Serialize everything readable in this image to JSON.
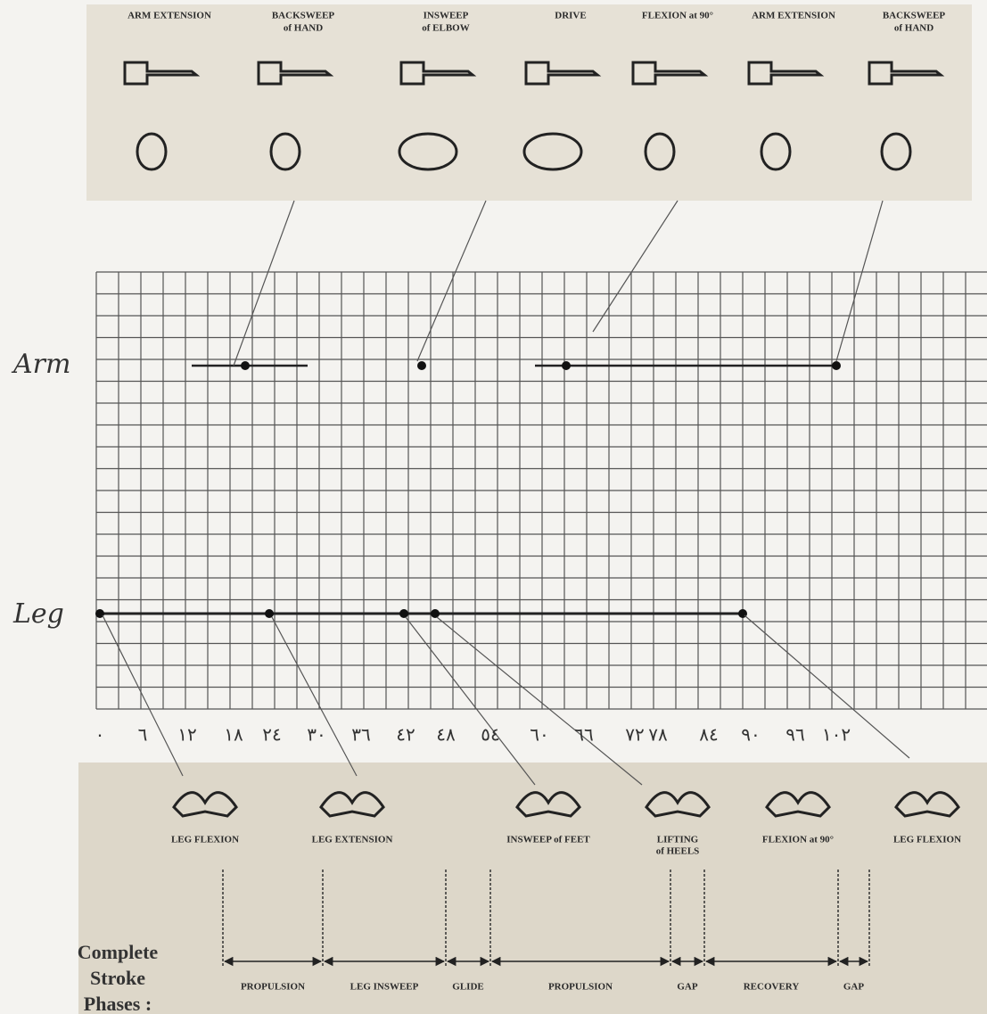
{
  "top_panel": {
    "phases": [
      [
        "ARM EXTENSION"
      ],
      [
        "BACKSWEEP",
        "of HAND"
      ],
      [
        "INSWEEP",
        "of ELBOW"
      ],
      [
        "DRIVE"
      ],
      [
        "FLEXION at 90°"
      ],
      [
        "ARM EXTENSION"
      ],
      [
        "BACKSWEEP",
        "of HAND"
      ]
    ]
  },
  "rows": {
    "arm": "Arm",
    "leg": "Leg"
  },
  "axis_labels": [
    "٠",
    "٦",
    "١٢",
    "١٨",
    "٢٤",
    "٣٠",
    "٣٦",
    "٤٢",
    "٤٨",
    "٥٤",
    "٦٠",
    "٦٦",
    "٧٢",
    "٧٨",
    "٨٤",
    "٩٠",
    "٩٦",
    "١٠٢"
  ],
  "bottom_panel": {
    "positions": [
      [
        "LEG FLEXION"
      ],
      [
        "LEG EXTENSION"
      ],
      [
        "INSWEEP of FEET"
      ],
      [
        "LIFTING",
        "of HEELS"
      ],
      [
        "FLEXION at 90°"
      ],
      [
        "LEG FLEXION"
      ]
    ],
    "title": [
      "Complete",
      "Stroke",
      "Phases :"
    ],
    "phases": [
      "PROPULSION",
      "LEG INSWEEP",
      "GLIDE",
      "PROPULSION",
      "GAP",
      "RECOVERY",
      "GAP"
    ]
  }
}
